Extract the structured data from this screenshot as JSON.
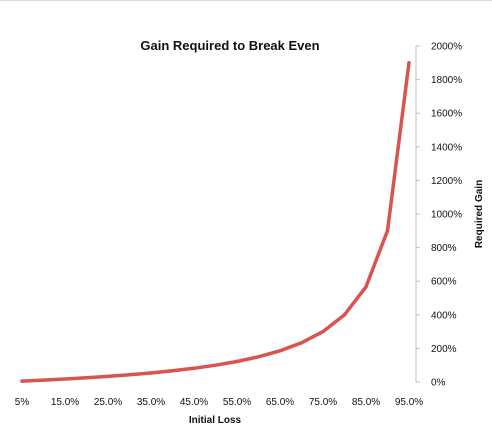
{
  "chart_data": {
    "type": "line",
    "title": "Gain Required to Break Even",
    "xlabel": "Initial Loss",
    "ylabel": "Required Gain",
    "x": [
      "5%",
      "10.0%",
      "15.0%",
      "20.0%",
      "25.0%",
      "30.0%",
      "35.0%",
      "40.0%",
      "45.0%",
      "50.0%",
      "55.0%",
      "60.0%",
      "65.0%",
      "70.0%",
      "75.0%",
      "80.0%",
      "85.0%",
      "90.0%",
      "95.0%"
    ],
    "x_tick_labels": [
      "5%",
      "15.0%",
      "25.0%",
      "35.0%",
      "45.0%",
      "55.0%",
      "65.0%",
      "75.0%",
      "85.0%",
      "95.0%"
    ],
    "y_tick_labels": [
      "0%",
      "200%",
      "400%",
      "600%",
      "800%",
      "1000%",
      "1200%",
      "1400%",
      "1600%",
      "1800%",
      "2000%"
    ],
    "ylim": [
      0,
      2000
    ],
    "y_axis_side": "right",
    "grid": false,
    "legend": "none",
    "series": [
      {
        "color": "#d9534f",
        "values": [
          5.3,
          11.1,
          17.6,
          25.0,
          33.3,
          42.9,
          53.8,
          66.7,
          81.8,
          100.0,
          122.2,
          150.0,
          185.7,
          233.3,
          300.0,
          400.0,
          566.7,
          900.0,
          1900.0
        ]
      }
    ]
  }
}
